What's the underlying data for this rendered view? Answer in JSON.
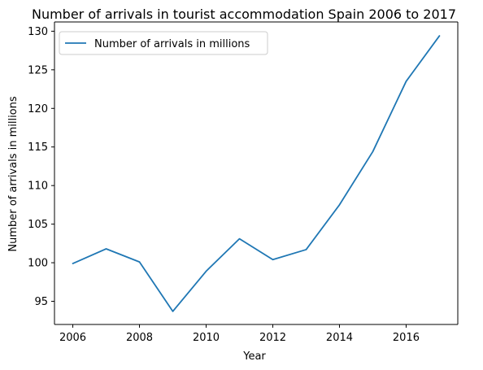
{
  "chart_data": {
    "type": "line",
    "title": "Number of arrivals in tourist accommodation Spain 2006 to 2017",
    "xlabel": "Year",
    "ylabel": "Number of arrivals in millions",
    "x": [
      2006,
      2007,
      2008,
      2009,
      2010,
      2011,
      2012,
      2013,
      2014,
      2015,
      2016,
      2017
    ],
    "series": [
      {
        "name": "Number of arrivals in millions",
        "color": "#1f77b4",
        "values": [
          99.9,
          101.8,
          100.1,
          93.7,
          98.9,
          103.1,
          100.4,
          101.7,
          107.5,
          114.4,
          123.5,
          129.4
        ]
      }
    ],
    "xlim": [
      2005.45,
      2017.55
    ],
    "ylim": [
      92,
      131.2
    ],
    "xticks": [
      2006,
      2008,
      2010,
      2012,
      2014,
      2016
    ],
    "xtick_labels": [
      "2006",
      "2008",
      "2010",
      "2012",
      "2014",
      "2016"
    ],
    "yticks": [
      95,
      100,
      105,
      110,
      115,
      120,
      125,
      130
    ],
    "ytick_labels": [
      "95",
      "100",
      "105",
      "110",
      "115",
      "120",
      "125",
      "130"
    ],
    "grid": false,
    "legend_position": "top-left"
  }
}
